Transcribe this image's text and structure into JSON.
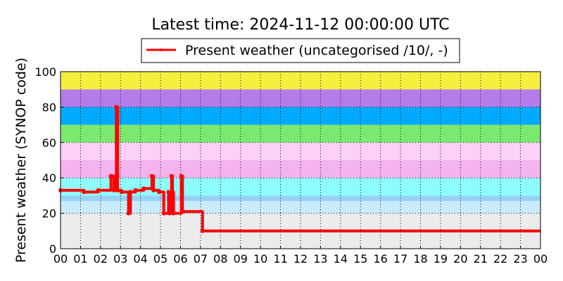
{
  "chart_data": {
    "type": "line",
    "title": "Latest time: 2024-11-12 00:00:00 UTC",
    "ylabel": "Present weather (SYNOP code)",
    "xlabel": "",
    "legend": {
      "placement": "top-center",
      "entries": [
        "Present weather (uncategorised /10/, -)"
      ]
    },
    "xlim": [
      0,
      24
    ],
    "ylim": [
      0,
      100
    ],
    "grid": true,
    "x_tick_labels": [
      "00",
      "01",
      "02",
      "03",
      "04",
      "05",
      "06",
      "07",
      "08",
      "09",
      "10",
      "11",
      "12",
      "13",
      "14",
      "15",
      "16",
      "17",
      "18",
      "19",
      "20",
      "21",
      "22",
      "23",
      "00"
    ],
    "y_ticks": [
      0,
      20,
      40,
      60,
      80,
      100
    ],
    "background_bands": [
      {
        "from": 0,
        "to": 20,
        "color": "#ebebeb"
      },
      {
        "from": 20,
        "to": 27,
        "color": "#c8ecfc"
      },
      {
        "from": 27,
        "to": 30,
        "color": "#96d2f6"
      },
      {
        "from": 30,
        "to": 40,
        "color": "#8ffcfc"
      },
      {
        "from": 40,
        "to": 50,
        "color": "#f5b3ee"
      },
      {
        "from": 50,
        "to": 60,
        "color": "#fcd0f7"
      },
      {
        "from": 60,
        "to": 70,
        "color": "#7be96f"
      },
      {
        "from": 70,
        "to": 80,
        "color": "#00aaff"
      },
      {
        "from": 80,
        "to": 90,
        "color": "#b57be9"
      },
      {
        "from": 90,
        "to": 100,
        "color": "#f5f03d"
      }
    ],
    "series": [
      {
        "name": "Present weather (uncategorised /10/, -)",
        "color": "#ff0000",
        "step": "post",
        "points": [
          [
            0.0,
            33
          ],
          [
            1.17,
            32
          ],
          [
            1.88,
            33
          ],
          [
            2.52,
            41
          ],
          [
            2.67,
            33
          ],
          [
            2.79,
            80
          ],
          [
            2.85,
            33
          ],
          [
            3.05,
            32
          ],
          [
            3.4,
            20
          ],
          [
            3.5,
            32
          ],
          [
            3.75,
            33
          ],
          [
            4.16,
            34
          ],
          [
            4.57,
            41
          ],
          [
            4.65,
            33
          ],
          [
            4.93,
            32
          ],
          [
            5.16,
            20
          ],
          [
            5.4,
            32
          ],
          [
            5.45,
            20
          ],
          [
            5.55,
            41
          ],
          [
            5.6,
            32
          ],
          [
            5.65,
            20
          ],
          [
            6.04,
            41
          ],
          [
            6.1,
            21
          ],
          [
            7.1,
            10
          ],
          [
            24.0,
            10
          ]
        ]
      }
    ]
  }
}
